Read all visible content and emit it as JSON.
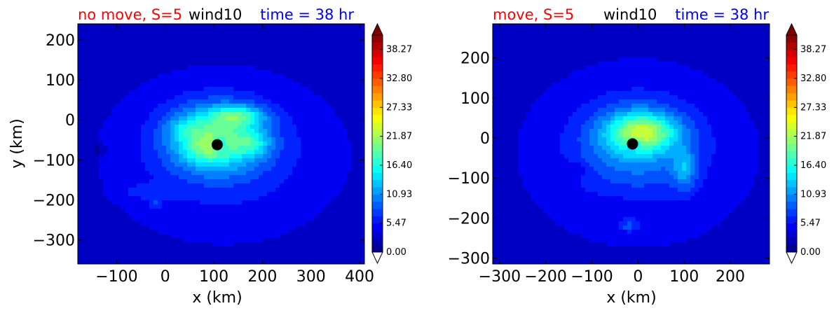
{
  "chart_data": [
    {
      "type": "heatmap",
      "title_parts": {
        "left": "no move, S=5",
        "center": "wind10",
        "right": "time = 38 hr"
      },
      "title_colors": {
        "left": "#ff0000",
        "center": "#000000",
        "right": "#0000ff"
      },
      "xlabel": "x (km)",
      "ylabel": "y (km)",
      "xlim": [
        -180,
        410
      ],
      "ylim": [
        -360,
        240
      ],
      "xticks": [
        -100,
        0,
        100,
        200,
        300,
        400
      ],
      "yticks": [
        -300,
        -200,
        -100,
        0,
        100,
        200
      ],
      "xtick_labels": [
        "−100",
        "0",
        "100",
        "200",
        "300",
        "400"
      ],
      "ytick_labels": [
        "−300",
        "−200",
        "−100",
        "0",
        "100",
        "200"
      ],
      "center_marker": {
        "x": 107,
        "y": -62
      },
      "features": [
        {
          "x": 105,
          "y": -45,
          "sx": 95,
          "sy": 80,
          "a": 13
        },
        {
          "x": 150,
          "y": 10,
          "sx": 55,
          "sy": 25,
          "a": 8
        },
        {
          "x": 80,
          "y": -75,
          "sx": 40,
          "sy": 35,
          "a": 4
        },
        {
          "x": 180,
          "y": -60,
          "sx": 35,
          "sy": 30,
          "a": 5
        },
        {
          "x": 40,
          "y": -20,
          "sx": 40,
          "sy": 30,
          "a": 3
        },
        {
          "x": 110,
          "y": -62,
          "sx": 14,
          "sy": 16,
          "a": -6
        },
        {
          "x": -40,
          "y": -180,
          "sx": 50,
          "sy": 20,
          "a": 2.5
        },
        {
          "x": -140,
          "y": -75,
          "sx": 12,
          "sy": 12,
          "a": -2.5
        },
        {
          "x": -20,
          "y": -210,
          "sx": 12,
          "sy": 10,
          "a": 3
        },
        {
          "x": 120,
          "y": -90,
          "sx": 200,
          "sy": 170,
          "a": 4
        }
      ],
      "background": 3.0,
      "colorbar": {
        "ticks": [
          "38.27",
          "32.80",
          "27.33",
          "21.87",
          "16.40",
          "10.93",
          "5.47",
          "0.00"
        ],
        "min": 0,
        "max": 41,
        "extend": "both"
      }
    },
    {
      "type": "heatmap",
      "title_parts": {
        "left": "move, S=5",
        "center": "wind10",
        "right": "time = 38 hr"
      },
      "title_colors": {
        "left": "#ff0000",
        "center": "#000000",
        "right": "#0000ff"
      },
      "xlabel": "x (km)",
      "ylabel": "",
      "xlim": [
        -315,
        285
      ],
      "ylim": [
        -315,
        285
      ],
      "xticks": [
        -300,
        -200,
        -100,
        0,
        100,
        200
      ],
      "yticks": [
        -300,
        -200,
        -100,
        0,
        100,
        200
      ],
      "xtick_labels": [
        "−300",
        "−200",
        "−100",
        "0",
        "100",
        "200"
      ],
      "ytick_labels": [
        "−300",
        "−200",
        "−100",
        "0",
        "100",
        "200"
      ],
      "center_marker": {
        "x": -12,
        "y": -15
      },
      "features": [
        {
          "x": 10,
          "y": 15,
          "sx": 70,
          "sy": 45,
          "a": 12
        },
        {
          "x": -5,
          "y": -5,
          "sx": 110,
          "sy": 90,
          "a": 6
        },
        {
          "x": 100,
          "y": -80,
          "sx": 25,
          "sy": 50,
          "a": 6
        },
        {
          "x": -20,
          "y": -220,
          "sx": 20,
          "sy": 15,
          "a": 4
        },
        {
          "x": -140,
          "y": -80,
          "sx": 30,
          "sy": 20,
          "a": -2
        },
        {
          "x": -60,
          "y": -170,
          "sx": 70,
          "sy": 20,
          "a": -1.5
        },
        {
          "x": -10,
          "y": -15,
          "sx": 14,
          "sy": 14,
          "a": -6
        },
        {
          "x": 0,
          "y": -40,
          "sx": 200,
          "sy": 180,
          "a": 4
        }
      ],
      "background": 3.0,
      "colorbar": {
        "ticks": [
          "38.27",
          "32.80",
          "27.33",
          "21.87",
          "16.40",
          "10.93",
          "5.47",
          "0.00"
        ],
        "min": 0,
        "max": 41,
        "extend": "both"
      }
    }
  ]
}
